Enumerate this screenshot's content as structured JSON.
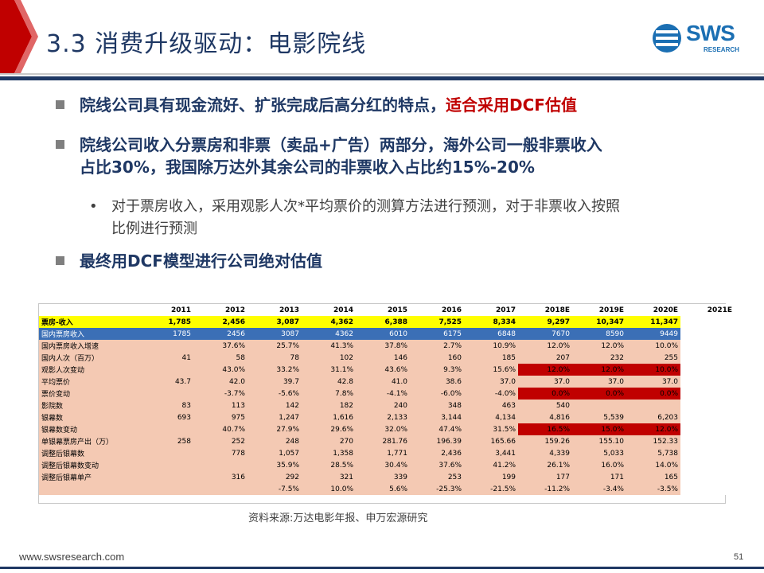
{
  "header": {
    "title": "3.3 消费升级驱动：电影院线"
  },
  "logo": {
    "text": "SWS",
    "sub": "RESEARCH"
  },
  "bullets": {
    "b1_main": "院线公司具有现金流好、扩张完成后高分红的特点，",
    "b1_red": "适合采用DCF估值",
    "b2_line1": "院线公司收入分票房和非票（卖品+广告）两部分，海外公司一般非票收入",
    "b2_line2": "占比30%，我国除万达外其余公司的非票收入占比约15%-20%",
    "sub_line1": "对于票房收入，采用观影人次*平均票价的测算方法进行预测，对于非票收入按照",
    "sub_line2": "比例进行预测",
    "b3": "最终用DCF模型进行公司绝对估值"
  },
  "table": {
    "columns": [
      "",
      "2011",
      "2012",
      "2013",
      "2014",
      "2015",
      "2016",
      "2017",
      "2018E",
      "2019E",
      "2020E",
      "2021E"
    ],
    "rows": [
      {
        "label": "票房-收入",
        "values": [
          "1,785",
          "2,456",
          "3,087",
          "4,362",
          "6,388",
          "7,525",
          "8,334",
          "9,297",
          "10,347",
          "11,347",
          ""
        ]
      },
      {
        "label": "国内票房收入",
        "values": [
          "1785",
          "2456",
          "3087",
          "4362",
          "6010",
          "6175",
          "6848",
          "7670",
          "8590",
          "9449",
          ""
        ]
      },
      {
        "label": "国内票房收入增速",
        "values": [
          "",
          "37.6%",
          "25.7%",
          "41.3%",
          "37.8%",
          "2.7%",
          "10.9%",
          "12.0%",
          "12.0%",
          "10.0%",
          ""
        ]
      },
      {
        "label": "国内人次（百万）",
        "values": [
          "41",
          "58",
          "78",
          "102",
          "146",
          "160",
          "185",
          "207",
          "232",
          "255",
          ""
        ]
      },
      {
        "label": "观影人次变动",
        "values": [
          "",
          "43.0%",
          "33.2%",
          "31.1%",
          "43.6%",
          "9.3%",
          "15.6%",
          "12.0%",
          "12.0%",
          "10.0%",
          ""
        ]
      },
      {
        "label": "平均票价",
        "values": [
          "43.7",
          "42.0",
          "39.7",
          "42.8",
          "41.0",
          "38.6",
          "37.0",
          "37.0",
          "37.0",
          "37.0",
          ""
        ]
      },
      {
        "label": "票价变动",
        "values": [
          "",
          "-3.7%",
          "-5.6%",
          "7.8%",
          "-4.1%",
          "-6.0%",
          "-4.0%",
          "0.0%",
          "0.0%",
          "0.0%",
          ""
        ]
      },
      {
        "label": "影院数",
        "values": [
          "83",
          "113",
          "142",
          "182",
          "240",
          "348",
          "463",
          "540",
          "",
          "",
          ""
        ]
      },
      {
        "label": "银幕数",
        "values": [
          "693",
          "975",
          "1,247",
          "1,616",
          "2,133",
          "3,144",
          "4,134",
          "4,816",
          "5,539",
          "6,203",
          ""
        ]
      },
      {
        "label": "银幕数变动",
        "values": [
          "",
          "40.7%",
          "27.9%",
          "29.6%",
          "32.0%",
          "47.4%",
          "31.5%",
          "16.5%",
          "15.0%",
          "12.0%",
          ""
        ]
      },
      {
        "label": "单银幕票房产出（万）",
        "values": [
          "258",
          "252",
          "248",
          "270",
          "281.76",
          "196.39",
          "165.66",
          "159.26",
          "155.10",
          "152.33",
          ""
        ]
      },
      {
        "label": "调整后银幕数",
        "values": [
          "",
          "778",
          "1,057",
          "1,358",
          "1,771",
          "2,436",
          "3,441",
          "4,339",
          "5,033",
          "5,738",
          ""
        ]
      },
      {
        "label": "调整后银幕数变动",
        "values": [
          "",
          "",
          "35.9%",
          "28.5%",
          "30.4%",
          "37.6%",
          "41.2%",
          "26.1%",
          "16.0%",
          "14.0%",
          ""
        ]
      },
      {
        "label": "调整后银幕单产",
        "values": [
          "",
          "316",
          "292",
          "321",
          "339",
          "253",
          "199",
          "177",
          "171",
          "165",
          ""
        ]
      },
      {
        "label": "",
        "values": [
          "",
          "",
          "-7.5%",
          "10.0%",
          "5.6%",
          "-25.3%",
          "-21.5%",
          "-11.2%",
          "-3.4%",
          "-3.5%",
          ""
        ]
      }
    ]
  },
  "source": "资料来源:万达电影年报、申万宏源研究",
  "footer": {
    "url": "www.swsresearch.com",
    "page": "51"
  },
  "colors": {
    "accent_red": "#c00000",
    "title_navy": "#1f3864",
    "brand_blue": "#1b6fb3",
    "table_blue": "#3b6fb6",
    "table_yellow": "#ffff00",
    "table_peach": "#f4c9b3"
  }
}
